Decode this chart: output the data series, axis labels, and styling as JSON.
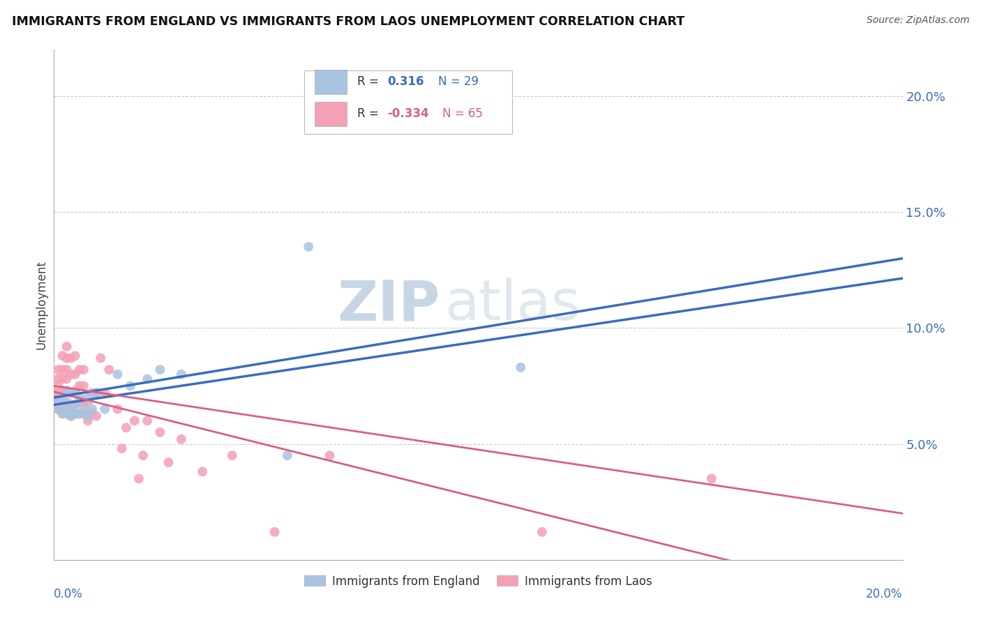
{
  "title": "IMMIGRANTS FROM ENGLAND VS IMMIGRANTS FROM LAOS UNEMPLOYMENT CORRELATION CHART",
  "source": "Source: ZipAtlas.com",
  "ylabel": "Unemployment",
  "legend_england": "Immigrants from England",
  "legend_laos": "Immigrants from Laos",
  "r_england": 0.316,
  "n_england": 29,
  "r_laos": -0.334,
  "n_laos": 65,
  "england_color": "#a8c4e0",
  "laos_color": "#f4a0b5",
  "england_line_color": "#3a6cbf",
  "laos_line_color": "#d96080",
  "england_x": [
    0.001,
    0.001,
    0.002,
    0.002,
    0.003,
    0.003,
    0.003,
    0.004,
    0.004,
    0.004,
    0.005,
    0.005,
    0.005,
    0.006,
    0.006,
    0.007,
    0.008,
    0.008,
    0.009,
    0.01,
    0.012,
    0.015,
    0.018,
    0.022,
    0.025,
    0.03,
    0.055,
    0.06,
    0.11
  ],
  "england_y": [
    0.065,
    0.068,
    0.063,
    0.07,
    0.063,
    0.067,
    0.073,
    0.062,
    0.065,
    0.072,
    0.063,
    0.067,
    0.072,
    0.063,
    0.07,
    0.065,
    0.062,
    0.07,
    0.065,
    0.072,
    0.065,
    0.08,
    0.075,
    0.078,
    0.082,
    0.08,
    0.045,
    0.135,
    0.083
  ],
  "laos_x": [
    0.001,
    0.001,
    0.001,
    0.001,
    0.001,
    0.001,
    0.001,
    0.002,
    0.002,
    0.002,
    0.002,
    0.002,
    0.002,
    0.002,
    0.003,
    0.003,
    0.003,
    0.003,
    0.003,
    0.003,
    0.003,
    0.003,
    0.004,
    0.004,
    0.004,
    0.004,
    0.004,
    0.005,
    0.005,
    0.005,
    0.005,
    0.005,
    0.006,
    0.006,
    0.006,
    0.006,
    0.007,
    0.007,
    0.007,
    0.007,
    0.008,
    0.008,
    0.009,
    0.009,
    0.01,
    0.01,
    0.011,
    0.012,
    0.013,
    0.015,
    0.016,
    0.017,
    0.019,
    0.02,
    0.021,
    0.022,
    0.025,
    0.027,
    0.03,
    0.035,
    0.042,
    0.052,
    0.065,
    0.115,
    0.155
  ],
  "laos_y": [
    0.065,
    0.067,
    0.07,
    0.072,
    0.075,
    0.078,
    0.082,
    0.063,
    0.067,
    0.07,
    0.073,
    0.078,
    0.082,
    0.088,
    0.063,
    0.065,
    0.068,
    0.073,
    0.078,
    0.082,
    0.087,
    0.092,
    0.062,
    0.067,
    0.072,
    0.08,
    0.087,
    0.063,
    0.067,
    0.073,
    0.08,
    0.088,
    0.063,
    0.068,
    0.075,
    0.082,
    0.063,
    0.068,
    0.075,
    0.082,
    0.06,
    0.068,
    0.063,
    0.072,
    0.062,
    0.072,
    0.087,
    0.072,
    0.082,
    0.065,
    0.048,
    0.057,
    0.06,
    0.035,
    0.045,
    0.06,
    0.055,
    0.042,
    0.052,
    0.038,
    0.045,
    0.012,
    0.045,
    0.012,
    0.035
  ],
  "watermark_zip": "ZIP",
  "watermark_atlas": "atlas",
  "xlim": [
    0,
    0.2
  ],
  "ylim": [
    0,
    0.22
  ],
  "ytick_positions": [
    0.05,
    0.1,
    0.15,
    0.2
  ],
  "ytick_labels": [
    "5.0%",
    "10.0%",
    "15.0%",
    "20.0%"
  ],
  "background_color": "#ffffff",
  "grid_color": "#c8c8c8",
  "spine_color": "#aaaaaa"
}
